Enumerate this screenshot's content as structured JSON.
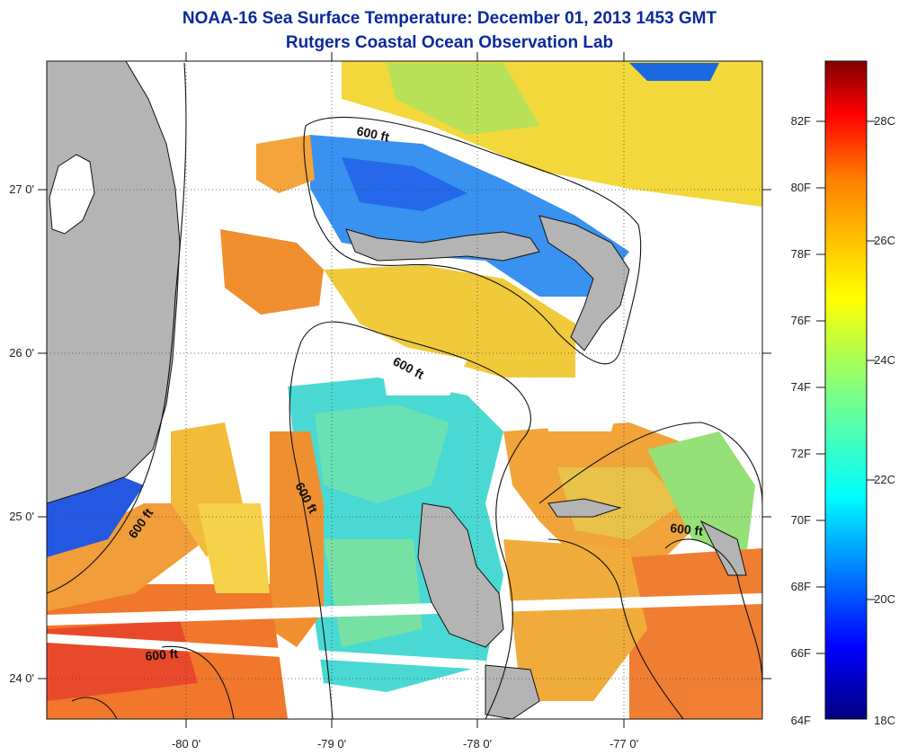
{
  "title": {
    "line1": "NOAA-16 Sea Surface Temperature:  December 01, 2013 1453 GMT",
    "line2": "Rutgers Coastal Ocean Observation Lab"
  },
  "map": {
    "lon_labels": [
      "-80 0'",
      "-79 0'",
      "-78 0'",
      "-77 0'"
    ],
    "lat_labels": [
      "27 0'",
      "26 0'",
      "25 0'",
      "24 0'"
    ],
    "contour_labels": [
      "600 ft",
      "600 ft",
      "600 ft",
      "600 ft",
      "600 ft",
      "600 ft"
    ],
    "land_color": "#b4b4b4",
    "cloud_color": "#ffffff",
    "contour_color": "#111111"
  },
  "colorbar": {
    "colors": [
      "#00007f",
      "#0000ff",
      "#0080ff",
      "#00ffff",
      "#80ff80",
      "#ffff00",
      "#ff8000",
      "#ff0000",
      "#7f0000"
    ],
    "fahrenheit_labels": [
      "82F",
      "80F",
      "78F",
      "76F",
      "74F",
      "72F",
      "70F",
      "68F",
      "66F",
      "64F"
    ],
    "celsius_labels": [
      "28C",
      "26C",
      "24C",
      "22C",
      "20C",
      "18C"
    ]
  }
}
